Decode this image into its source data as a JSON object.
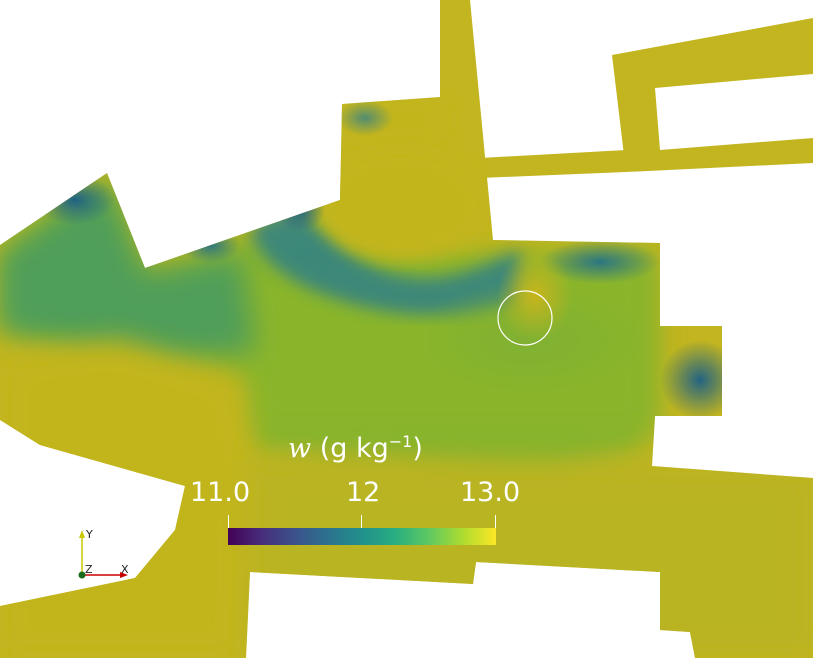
{
  "colorbar": {
    "variable_symbol": "w",
    "unit_open": " (g kg",
    "unit_exp": "−1",
    "unit_close": ")",
    "tick_labels": [
      "11.0",
      "12",
      "13.0"
    ],
    "range": [
      11.0,
      13.0
    ],
    "colormap": "viridis"
  },
  "axes_glyph": {
    "y_label": "Y",
    "z_label": "Z",
    "x_label": "X"
  },
  "colors": {
    "domain_fill": "#c2b51f",
    "background": "#ffffff"
  }
}
